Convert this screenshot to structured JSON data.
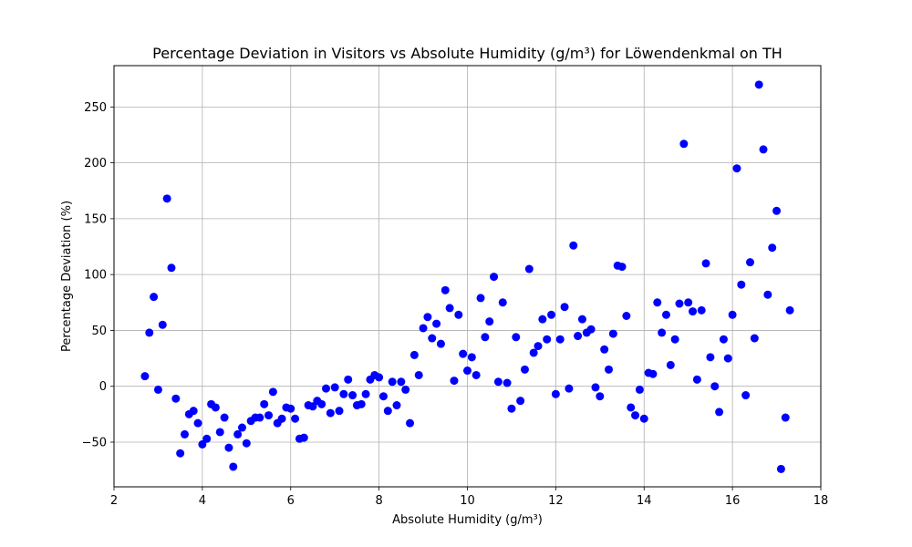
{
  "chart_data": {
    "type": "scatter",
    "title": "Percentage Deviation in Visitors vs Absolute Humidity (g/m³) for Löwendenkmal on TH",
    "xlabel": "Absolute Humidity (g/m³)",
    "ylabel": "Percentage Deviation (%)",
    "xlim": [
      2,
      18
    ],
    "ylim": [
      -90,
      287
    ],
    "x_ticks": [
      2,
      4,
      6,
      8,
      10,
      12,
      14,
      16,
      18
    ],
    "y_ticks": [
      -50,
      0,
      50,
      100,
      150,
      200,
      250
    ],
    "grid": true,
    "marker_color": "#0000ff",
    "series": [
      {
        "points": [
          [
            2.7,
            9
          ],
          [
            2.8,
            48
          ],
          [
            2.9,
            80
          ],
          [
            3.0,
            -3
          ],
          [
            3.1,
            55
          ],
          [
            3.2,
            168
          ],
          [
            3.3,
            106
          ],
          [
            3.4,
            -11
          ],
          [
            3.5,
            -60
          ],
          [
            3.6,
            -43
          ],
          [
            3.7,
            -25
          ],
          [
            3.8,
            -22
          ],
          [
            3.9,
            -33
          ],
          [
            4.0,
            -52
          ],
          [
            4.1,
            -47
          ],
          [
            4.2,
            -16
          ],
          [
            4.3,
            -19
          ],
          [
            4.4,
            -41
          ],
          [
            4.5,
            -28
          ],
          [
            4.6,
            -55
          ],
          [
            4.7,
            -72
          ],
          [
            4.8,
            -43
          ],
          [
            4.9,
            -37
          ],
          [
            5.0,
            -51
          ],
          [
            5.1,
            -31
          ],
          [
            5.2,
            -28
          ],
          [
            5.3,
            -28
          ],
          [
            5.4,
            -16
          ],
          [
            5.5,
            -26
          ],
          [
            5.6,
            -5
          ],
          [
            5.7,
            -33
          ],
          [
            5.8,
            -29
          ],
          [
            5.9,
            -19
          ],
          [
            6.0,
            -20
          ],
          [
            6.1,
            -29
          ],
          [
            6.2,
            -47
          ],
          [
            6.3,
            -46
          ],
          [
            6.4,
            -17
          ],
          [
            6.5,
            -18
          ],
          [
            6.6,
            -13
          ],
          [
            6.7,
            -16
          ],
          [
            6.8,
            -2
          ],
          [
            6.9,
            -24
          ],
          [
            7.0,
            -1
          ],
          [
            7.1,
            -22
          ],
          [
            7.2,
            -7
          ],
          [
            7.3,
            6
          ],
          [
            7.4,
            -8
          ],
          [
            7.5,
            -17
          ],
          [
            7.6,
            -16
          ],
          [
            7.7,
            -7
          ],
          [
            7.8,
            6
          ],
          [
            7.9,
            10
          ],
          [
            8.0,
            8
          ],
          [
            8.1,
            -9
          ],
          [
            8.2,
            -22
          ],
          [
            8.3,
            4
          ],
          [
            8.4,
            -17
          ],
          [
            8.5,
            4
          ],
          [
            8.6,
            -3
          ],
          [
            8.7,
            -33
          ],
          [
            8.8,
            28
          ],
          [
            8.9,
            10
          ],
          [
            9.0,
            52
          ],
          [
            9.1,
            62
          ],
          [
            9.2,
            43
          ],
          [
            9.3,
            56
          ],
          [
            9.4,
            38
          ],
          [
            9.5,
            86
          ],
          [
            9.6,
            70
          ],
          [
            9.7,
            5
          ],
          [
            9.8,
            64
          ],
          [
            9.9,
            29
          ],
          [
            10.0,
            14
          ],
          [
            10.1,
            26
          ],
          [
            10.2,
            10
          ],
          [
            10.3,
            79
          ],
          [
            10.4,
            44
          ],
          [
            10.5,
            58
          ],
          [
            10.6,
            98
          ],
          [
            10.7,
            4
          ],
          [
            10.8,
            75
          ],
          [
            10.9,
            3
          ],
          [
            11.0,
            -20
          ],
          [
            11.1,
            44
          ],
          [
            11.2,
            -13
          ],
          [
            11.3,
            15
          ],
          [
            11.4,
            105
          ],
          [
            11.5,
            30
          ],
          [
            11.6,
            36
          ],
          [
            11.7,
            60
          ],
          [
            11.8,
            42
          ],
          [
            11.9,
            64
          ],
          [
            12.0,
            -7
          ],
          [
            12.1,
            42
          ],
          [
            12.2,
            71
          ],
          [
            12.3,
            -2
          ],
          [
            12.4,
            126
          ],
          [
            12.5,
            45
          ],
          [
            12.6,
            60
          ],
          [
            12.7,
            48
          ],
          [
            12.8,
            51
          ],
          [
            12.9,
            -1
          ],
          [
            13.0,
            -9
          ],
          [
            13.1,
            33
          ],
          [
            13.2,
            15
          ],
          [
            13.3,
            47
          ],
          [
            13.4,
            108
          ],
          [
            13.5,
            107
          ],
          [
            13.6,
            63
          ],
          [
            13.7,
            -19
          ],
          [
            13.8,
            -26
          ],
          [
            13.9,
            -3
          ],
          [
            14.0,
            -29
          ],
          [
            14.1,
            12
          ],
          [
            14.2,
            11
          ],
          [
            14.3,
            75
          ],
          [
            14.4,
            48
          ],
          [
            14.5,
            64
          ],
          [
            14.6,
            19
          ],
          [
            14.7,
            42
          ],
          [
            14.8,
            74
          ],
          [
            14.9,
            217
          ],
          [
            15.0,
            75
          ],
          [
            15.1,
            67
          ],
          [
            15.2,
            6
          ],
          [
            15.3,
            68
          ],
          [
            15.4,
            110
          ],
          [
            15.5,
            26
          ],
          [
            15.6,
            0
          ],
          [
            15.7,
            -23
          ],
          [
            15.8,
            42
          ],
          [
            15.9,
            25
          ],
          [
            16.0,
            64
          ],
          [
            16.1,
            195
          ],
          [
            16.2,
            91
          ],
          [
            16.3,
            -8
          ],
          [
            16.4,
            111
          ],
          [
            16.5,
            43
          ],
          [
            16.6,
            270
          ],
          [
            16.7,
            212
          ],
          [
            16.8,
            82
          ],
          [
            16.9,
            124
          ],
          [
            17.0,
            157
          ],
          [
            17.1,
            -74
          ],
          [
            17.2,
            -28
          ],
          [
            17.3,
            68
          ]
        ]
      }
    ]
  }
}
